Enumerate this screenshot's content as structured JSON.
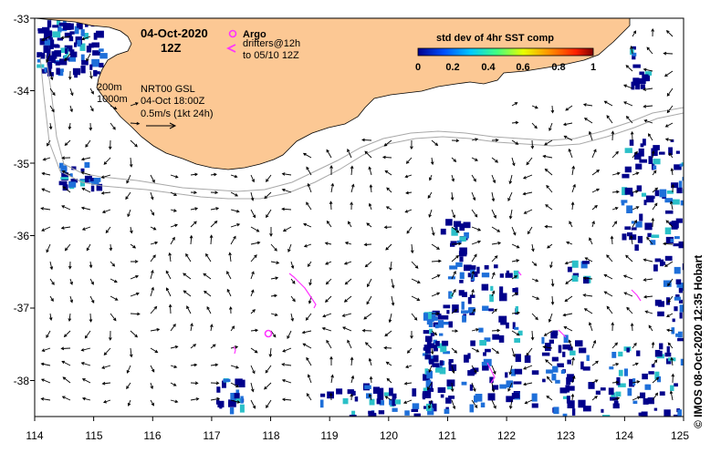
{
  "map": {
    "date_title": "04-Oct-2020",
    "time_title": "12Z",
    "argo_label": "Argo",
    "drifters_line1": "drifters@12h",
    "drifters_line2": "to 05/10 12Z",
    "isobath_200": "200m",
    "isobath_1000": "1000m",
    "product_line1": "NRT00 GSL",
    "product_line2": "04-Oct 18:00Z",
    "scale_label": "0.5m/s (1kt 24h)",
    "credit": "© IMOS 08-Oct-2020 12:35 Hobart",
    "colorbar": {
      "title": "std dev of 4hr SST comp",
      "ticks": [
        "0",
        "0.2",
        "0.4",
        "0.6",
        "0.8",
        "1"
      ]
    },
    "x_ticks": [
      "114",
      "115",
      "116",
      "117",
      "118",
      "119",
      "120",
      "121",
      "122",
      "123",
      "124",
      "125"
    ],
    "y_ticks": [
      "-33",
      "-34",
      "-35",
      "-36",
      "-37",
      "-38"
    ],
    "colors": {
      "land": "#fcc894",
      "isobath": "#a8a8a8",
      "argo": "#ff33ff",
      "drifter": "#ff33ff",
      "sst_low": "#00008b",
      "sst_mid": "#1e6fd9",
      "sst_high": "#2bc0c8"
    },
    "icons": {
      "argo_marker": "circle-marker",
      "drifter_marker": "chevron-marker",
      "current_vector": "arrow"
    }
  }
}
